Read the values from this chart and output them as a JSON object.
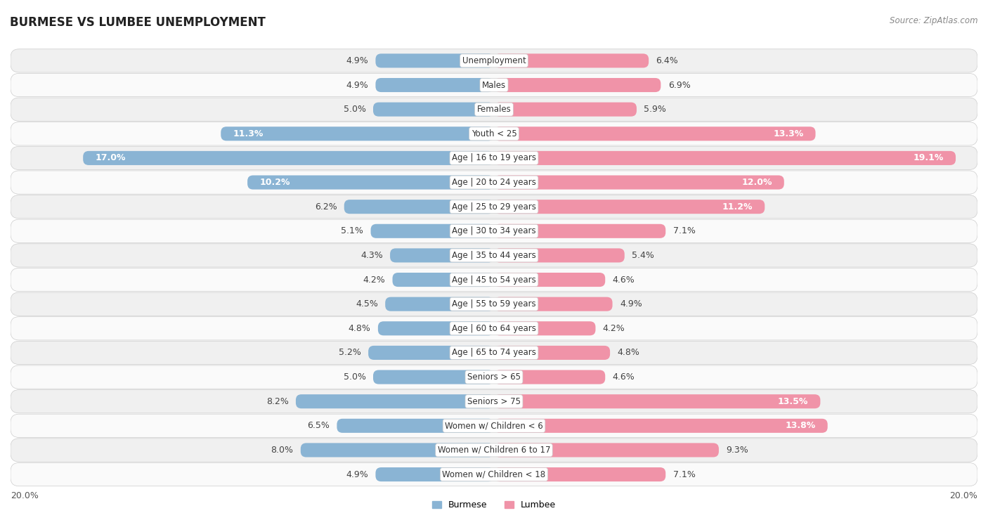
{
  "title": "BURMESE VS LUMBEE UNEMPLOYMENT",
  "source": "Source: ZipAtlas.com",
  "categories": [
    "Unemployment",
    "Males",
    "Females",
    "Youth < 25",
    "Age | 16 to 19 years",
    "Age | 20 to 24 years",
    "Age | 25 to 29 years",
    "Age | 30 to 34 years",
    "Age | 35 to 44 years",
    "Age | 45 to 54 years",
    "Age | 55 to 59 years",
    "Age | 60 to 64 years",
    "Age | 65 to 74 years",
    "Seniors > 65",
    "Seniors > 75",
    "Women w/ Children < 6",
    "Women w/ Children 6 to 17",
    "Women w/ Children < 18"
  ],
  "burmese": [
    4.9,
    4.9,
    5.0,
    11.3,
    17.0,
    10.2,
    6.2,
    5.1,
    4.3,
    4.2,
    4.5,
    4.8,
    5.2,
    5.0,
    8.2,
    6.5,
    8.0,
    4.9
  ],
  "lumbee": [
    6.4,
    6.9,
    5.9,
    13.3,
    19.1,
    12.0,
    11.2,
    7.1,
    5.4,
    4.6,
    4.9,
    4.2,
    4.8,
    4.6,
    13.5,
    13.8,
    9.3,
    7.1
  ],
  "burmese_color": "#8ab4d4",
  "lumbee_color": "#f093a8",
  "row_bg_odd": "#f0f0f0",
  "row_bg_even": "#fafafa",
  "max_val": 20.0,
  "label_fontsize": 9.0,
  "title_fontsize": 12,
  "source_fontsize": 8.5,
  "category_fontsize": 8.5,
  "inside_label_threshold": 10.0
}
